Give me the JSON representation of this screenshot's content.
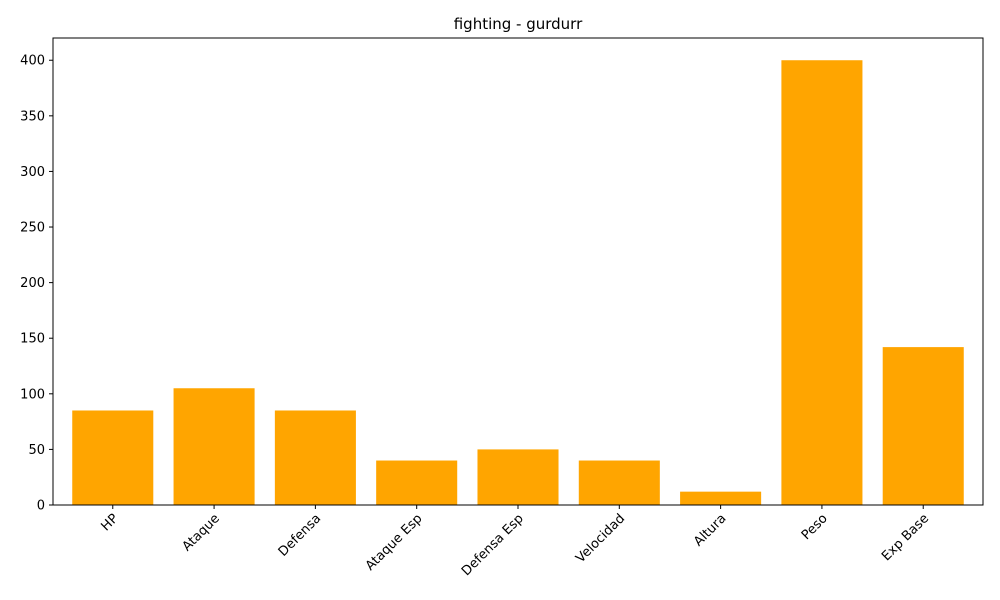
{
  "chart_data": {
    "type": "bar",
    "title": "fighting - gurdurr",
    "xlabel": "",
    "ylabel": "",
    "categories": [
      "HP",
      "Ataque",
      "Defensa",
      "Ataque Esp",
      "Defensa Esp",
      "Velocidad",
      "Altura",
      "Peso",
      "Exp Base"
    ],
    "values": [
      85,
      105,
      85,
      40,
      50,
      40,
      12,
      400,
      142
    ],
    "ylim": [
      0,
      420
    ],
    "yticks": [
      0,
      50,
      100,
      150,
      200,
      250,
      300,
      350,
      400
    ],
    "bar_color": "#ffa500",
    "grid": false
  }
}
